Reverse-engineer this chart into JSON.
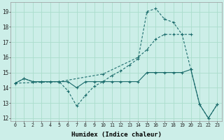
{
  "xlabel": "Humidex (Indice chaleur)",
  "bg_color": "#cceee8",
  "grid_color": "#aaddcc",
  "line_color": "#1a6b6b",
  "xlim_min": -0.5,
  "xlim_max": 23.5,
  "ylim_min": 11.8,
  "ylim_max": 19.6,
  "yticks": [
    12,
    13,
    14,
    15,
    16,
    17,
    18,
    19
  ],
  "xticks": [
    0,
    1,
    2,
    3,
    4,
    5,
    6,
    7,
    8,
    9,
    10,
    11,
    12,
    13,
    14,
    15,
    16,
    17,
    18,
    19,
    20,
    21,
    22,
    23
  ],
  "series1_x": [
    0,
    1,
    2,
    3,
    4,
    5,
    6,
    7,
    8,
    9,
    10,
    11,
    12,
    13,
    14,
    15,
    16,
    17,
    18,
    19,
    20,
    21,
    22,
    23
  ],
  "series1_y": [
    14.3,
    14.6,
    14.4,
    14.4,
    14.4,
    14.4,
    14.4,
    14.0,
    14.4,
    14.4,
    14.4,
    14.4,
    14.4,
    14.4,
    14.4,
    15.0,
    15.0,
    15.0,
    15.0,
    15.0,
    15.2,
    12.9,
    12.0,
    12.9
  ],
  "series2_x": [
    0,
    1,
    2,
    3,
    4,
    5,
    6,
    7,
    8,
    9,
    10,
    11,
    12,
    13,
    14,
    15,
    16,
    17,
    18,
    19,
    20,
    21,
    22,
    23
  ],
  "series2_y": [
    14.3,
    14.6,
    14.4,
    14.4,
    14.4,
    14.4,
    13.8,
    12.8,
    13.5,
    14.1,
    14.4,
    14.8,
    15.1,
    15.5,
    15.9,
    19.0,
    19.2,
    18.5,
    18.3,
    17.5,
    15.2,
    12.9,
    12.0,
    12.9
  ],
  "series3_x": [
    0,
    5,
    10,
    14,
    15,
    16,
    17,
    18,
    19,
    20
  ],
  "series3_y": [
    14.3,
    14.4,
    14.9,
    16.0,
    16.5,
    17.2,
    17.5,
    17.5,
    17.5,
    17.5
  ]
}
